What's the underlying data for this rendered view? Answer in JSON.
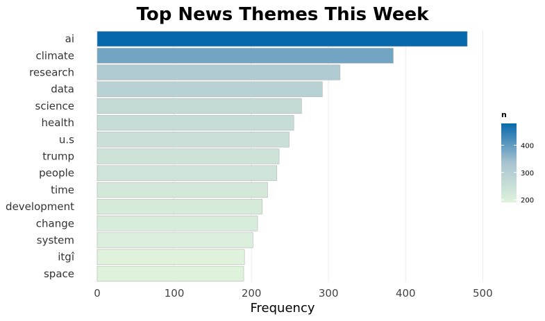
{
  "chart_data": {
    "type": "bar",
    "orientation": "horizontal",
    "title": "Top News Themes This Week",
    "xlabel": "Frequency",
    "ylabel": "",
    "categories": [
      "ai",
      "climate",
      "research",
      "data",
      "science",
      "health",
      "u.s",
      "trump",
      "people",
      "time",
      "development",
      "change",
      "system",
      "itgî",
      "space"
    ],
    "values": [
      480,
      384,
      315,
      292,
      265,
      255,
      249,
      236,
      233,
      221,
      214,
      208,
      202,
      191,
      190
    ],
    "xlim": [
      0,
      520
    ],
    "xticks": [
      0,
      100,
      200,
      300,
      400,
      500
    ],
    "grid": "vertical major gridlines",
    "legend": {
      "title": "n",
      "placement": "right",
      "ticks": [
        200,
        300,
        400
      ],
      "min": 190,
      "max": 480,
      "color_low": "#dff2dc",
      "color_high": "#0868ac"
    }
  }
}
